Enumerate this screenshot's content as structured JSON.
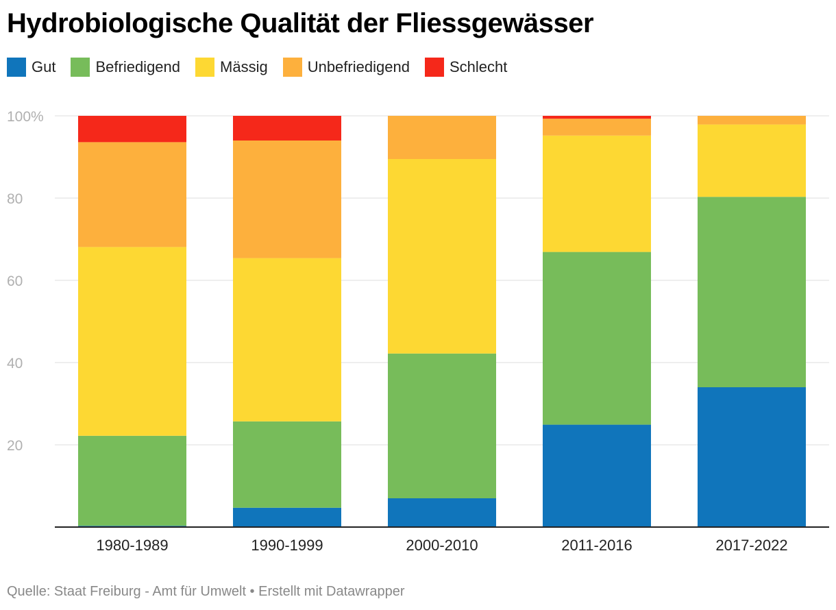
{
  "chart_data": {
    "type": "bar",
    "stacked": true,
    "title": "Hydrobiologische Qualität der Fliessgewässer",
    "xlabel": "",
    "ylabel": "",
    "ylim": [
      0,
      100
    ],
    "yticks": [
      {
        "value": 20,
        "label": "20"
      },
      {
        "value": 40,
        "label": "40"
      },
      {
        "value": 60,
        "label": "60"
      },
      {
        "value": 80,
        "label": "80"
      },
      {
        "value": 100,
        "label": "100%"
      }
    ],
    "grid": true,
    "legend_position": "top-left",
    "categories": [
      "1980-1989",
      "1990-1999",
      "2000-2010",
      "2011-2016",
      "2017-2022"
    ],
    "series": [
      {
        "name": "Gut",
        "color": "#1075bb",
        "values": [
          0.3,
          4.7,
          7.0,
          24.9,
          34.0
        ]
      },
      {
        "name": "Befriedigend",
        "color": "#77bc5a",
        "values": [
          21.9,
          21.0,
          35.2,
          42.0,
          46.3
        ]
      },
      {
        "name": "Mässig",
        "color": "#fdd833",
        "values": [
          45.9,
          39.7,
          47.3,
          28.3,
          17.6
        ]
      },
      {
        "name": "Unbefriedigend",
        "color": "#fdb03d",
        "values": [
          25.5,
          28.6,
          10.5,
          4.1,
          2.1
        ]
      },
      {
        "name": "Schlecht",
        "color": "#f5281a",
        "values": [
          6.4,
          6.0,
          0.0,
          0.7,
          0.0
        ]
      }
    ],
    "source": "Quelle: Staat Freiburg - Amt für Umwelt • Erstellt mit Datawrapper"
  }
}
